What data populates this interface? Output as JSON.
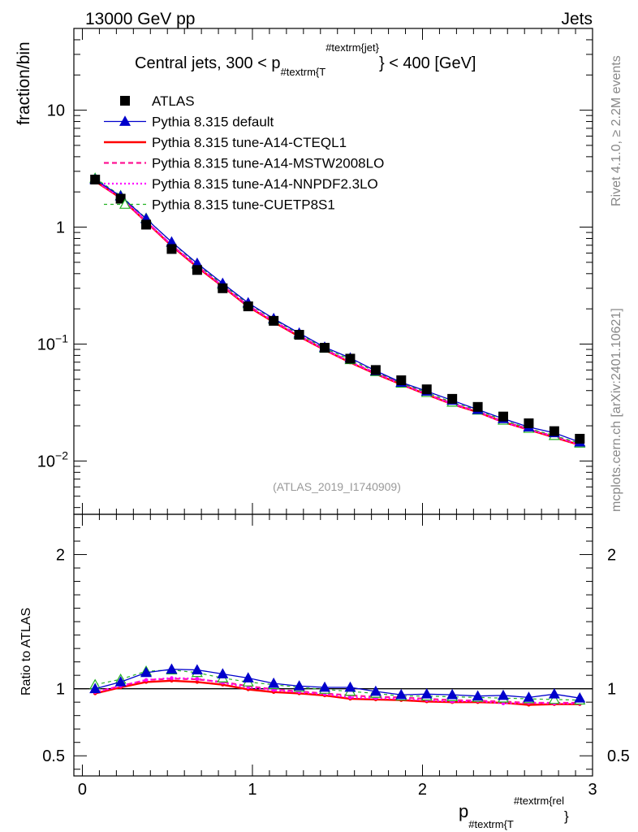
{
  "header": {
    "left": "13000 GeV pp",
    "right": "Jets"
  },
  "side_text": {
    "rivet": "Rivet 4.1.0, ≥ 2.2M events",
    "mcplots": "mcplots.cern.ch [arXiv:2401.10621]"
  },
  "colors": {
    "atlas": "#000000",
    "default": "#0000cc",
    "cteql1": "#ff0000",
    "mstw": "#ff1493",
    "nnpdf": "#ff00ff",
    "cuetp8s1": "#22b222",
    "refline": "#000000"
  },
  "chart_data": [
    {
      "type": "line",
      "title": "Central jets, 300 < p",
      "title_sub": "#textrm{T",
      "title_sup": "#textrm{jet}",
      "title_end": "} < 400 [GeV]",
      "ylabel": "fraction/bin",
      "yscale": "log",
      "xlim": [
        -0.05,
        3.0
      ],
      "ylim": [
        0.0035,
        50
      ],
      "yticks": [
        {
          "value": 10,
          "label": "10"
        },
        {
          "value": 1,
          "label": "1"
        },
        {
          "value": 0.1,
          "base": "10",
          "exp": "−1"
        },
        {
          "value": 0.01,
          "base": "10",
          "exp": "−2"
        }
      ],
      "watermark": "(ATLAS_2019_I1740909)",
      "x": [
        0.075,
        0.225,
        0.375,
        0.525,
        0.675,
        0.825,
        0.975,
        1.125,
        1.275,
        1.425,
        1.575,
        1.725,
        1.875,
        2.025,
        2.175,
        2.325,
        2.475,
        2.625,
        2.775,
        2.925
      ],
      "series": [
        {
          "key": "atlas",
          "name": "ATLAS",
          "values": [
            2.55,
            1.75,
            1.05,
            0.65,
            0.43,
            0.3,
            0.21,
            0.158,
            0.12,
            0.093,
            0.075,
            0.06,
            0.049,
            0.041,
            0.034,
            0.029,
            0.024,
            0.021,
            0.018,
            0.0155
          ]
        },
        {
          "key": "default",
          "name": "Pythia 8.315 default",
          "values": [
            2.55,
            1.84,
            1.18,
            0.745,
            0.49,
            0.33,
            0.225,
            0.165,
            0.124,
            0.094,
            0.076,
            0.059,
            0.047,
            0.0395,
            0.033,
            0.0275,
            0.023,
            0.0195,
            0.0174,
            0.0145
          ]
        },
        {
          "key": "cteql1",
          "name": "Pythia 8.315 tune-A14-CTEQL1",
          "values": [
            2.47,
            1.77,
            1.11,
            0.69,
            0.455,
            0.31,
            0.209,
            0.154,
            0.116,
            0.089,
            0.0695,
            0.0555,
            0.0452,
            0.037,
            0.0306,
            0.0262,
            0.0215,
            0.0185,
            0.0159,
            0.0137
          ]
        },
        {
          "key": "mstw",
          "name": "Pythia 8.315 tune-A14-MSTW2008LO",
          "values": [
            2.49,
            1.79,
            1.12,
            0.7,
            0.465,
            0.315,
            0.213,
            0.157,
            0.118,
            0.09,
            0.0705,
            0.0565,
            0.046,
            0.0375,
            0.031,
            0.0265,
            0.0218,
            0.0188,
            0.0162,
            0.0139
          ]
        },
        {
          "key": "nnpdf",
          "name": "Pythia 8.315 tune-A14-NNPDF2.3LO",
          "values": [
            2.49,
            1.79,
            1.12,
            0.7,
            0.462,
            0.313,
            0.212,
            0.156,
            0.117,
            0.0895,
            0.07,
            0.056,
            0.0455,
            0.0372,
            0.0308,
            0.0264,
            0.0213,
            0.0187,
            0.0161,
            0.0138
          ]
        },
        {
          "key": "cuetp8s1",
          "name": "Pythia 8.315 tune-CUETP8S1",
          "values": [
            2.62,
            1.86,
            1.19,
            0.74,
            0.48,
            0.323,
            0.221,
            0.163,
            0.121,
            0.092,
            0.0735,
            0.058,
            0.0462,
            0.0385,
            0.0318,
            0.0272,
            0.0223,
            0.019,
            0.0165,
            0.0142
          ]
        }
      ]
    },
    {
      "type": "line",
      "ylabel": "Ratio to ATLAS",
      "xlabel": "p",
      "xlabel_sub": "#textrm{T",
      "xlabel_sup": "#textrm{rel",
      "xlabel_end": "}",
      "xlim": [
        -0.05,
        3.0
      ],
      "ylim": [
        0.35,
        2.3
      ],
      "xticks": [
        0,
        1,
        2,
        3
      ],
      "yticks": [
        {
          "value": 2,
          "label": "2"
        },
        {
          "value": 1,
          "label": "1"
        },
        {
          "value": 0.5,
          "label": "0.5"
        }
      ],
      "x": [
        0.075,
        0.225,
        0.375,
        0.525,
        0.675,
        0.825,
        0.975,
        1.125,
        1.275,
        1.425,
        1.575,
        1.725,
        1.875,
        2.025,
        2.175,
        2.325,
        2.475,
        2.625,
        2.775,
        2.925
      ],
      "series": [
        {
          "key": "default",
          "name": "Pythia 8.315 default",
          "values": [
            1.0,
            1.05,
            1.12,
            1.145,
            1.14,
            1.11,
            1.08,
            1.04,
            1.02,
            1.01,
            1.01,
            0.98,
            0.955,
            0.96,
            0.955,
            0.945,
            0.95,
            0.935,
            0.96,
            0.93
          ]
        },
        {
          "key": "cteql1",
          "name": "Pythia 8.315 tune-A14-CTEQL1",
          "values": [
            0.965,
            1.01,
            1.05,
            1.06,
            1.05,
            1.03,
            0.995,
            0.975,
            0.965,
            0.95,
            0.925,
            0.92,
            0.915,
            0.905,
            0.9,
            0.9,
            0.895,
            0.88,
            0.885,
            0.885
          ]
        },
        {
          "key": "mstw",
          "name": "Pythia 8.315 tune-A14-MSTW2008LO",
          "values": [
            0.975,
            1.02,
            1.065,
            1.075,
            1.07,
            1.05,
            1.02,
            0.995,
            0.98,
            0.965,
            0.95,
            0.94,
            0.935,
            0.925,
            0.915,
            0.91,
            0.905,
            0.895,
            0.895,
            0.895
          ]
        },
        {
          "key": "nnpdf",
          "name": "Pythia 8.315 tune-A14-NNPDF2.3LO",
          "values": [
            0.975,
            1.02,
            1.065,
            1.08,
            1.075,
            1.045,
            1.01,
            0.99,
            0.975,
            0.96,
            0.935,
            0.93,
            0.925,
            0.915,
            0.905,
            0.91,
            0.89,
            0.895,
            0.89,
            0.89
          ]
        },
        {
          "key": "cuetp8s1",
          "name": "Pythia 8.315 tune-CUETP8S1",
          "values": [
            1.03,
            1.07,
            1.13,
            1.14,
            1.12,
            1.08,
            1.05,
            1.03,
            1.01,
            0.995,
            0.98,
            0.965,
            0.945,
            0.945,
            0.94,
            0.935,
            0.93,
            0.925,
            0.92,
            0.915
          ]
        }
      ]
    }
  ]
}
